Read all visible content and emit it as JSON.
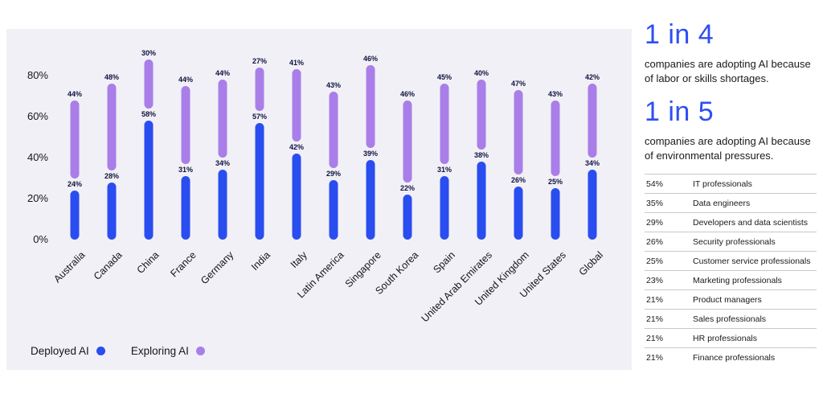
{
  "chart_data": {
    "type": "bar",
    "subtype": "stacked-lollipop",
    "stacked": true,
    "grid": false,
    "legend_position": "bottom-left",
    "categories": [
      "Australia",
      "Canada",
      "China",
      "France",
      "Germany",
      "India",
      "Italy",
      "Latin America",
      "Singapore",
      "South Korea",
      "Spain",
      "United Arab Emirates",
      "United Kingdom",
      "United States",
      "Global"
    ],
    "series": [
      {
        "name": "Deployed AI",
        "color": "#2a4df0",
        "values": [
          24,
          28,
          58,
          31,
          34,
          57,
          42,
          29,
          39,
          22,
          31,
          38,
          26,
          25,
          34
        ]
      },
      {
        "name": "Exploring AI",
        "color": "#a97ee8",
        "values": [
          44,
          48,
          30,
          44,
          44,
          27,
          41,
          43,
          46,
          46,
          45,
          40,
          47,
          43,
          42
        ]
      }
    ],
    "value_label_suffix": "%",
    "y_ticks": [
      "0%",
      "20%",
      "40%",
      "60%",
      "80%"
    ],
    "ylim": [
      0,
      94
    ]
  },
  "stats": [
    {
      "headline": "1 in 4",
      "description": "companies are adopting AI because of labor or skills shortages."
    },
    {
      "headline": "1 in 5",
      "description": "companies are adopting AI because of environmental pressures."
    }
  ],
  "professions_table": {
    "rows": [
      {
        "pct": "54%",
        "label": "IT professionals"
      },
      {
        "pct": "35%",
        "label": "Data engineers"
      },
      {
        "pct": "29%",
        "label": "Developers and data scientists"
      },
      {
        "pct": "26%",
        "label": "Security professionals"
      },
      {
        "pct": "25%",
        "label": "Customer service professionals"
      },
      {
        "pct": "23%",
        "label": "Marketing professionals"
      },
      {
        "pct": "21%",
        "label": "Product managers"
      },
      {
        "pct": "21%",
        "label": "Sales professionals"
      },
      {
        "pct": "21%",
        "label": "HR professionals"
      },
      {
        "pct": "21%",
        "label": "Finance professionals"
      }
    ]
  },
  "colors": {
    "deployed": "#2a4df0",
    "exploring": "#a97ee8",
    "headline": "#2d4ff2",
    "chart_background": "#f1f0f7"
  }
}
